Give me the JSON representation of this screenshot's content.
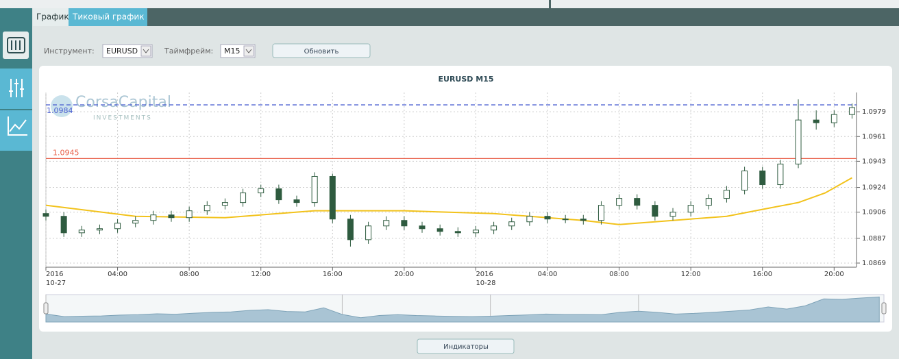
{
  "tabs": [
    "График",
    "Тиковый график"
  ],
  "toolbar": {
    "instrument_label": "Инструмент:",
    "instrument": "EURUSD",
    "timeframe_label": "Таймфрейм:",
    "timeframe": "M15",
    "refresh_button": "Обновить"
  },
  "logo": {
    "name": "CorsaCapital",
    "tagline": "INVESTMENTS"
  },
  "indicators_button": "Индикаторы",
  "chart_data": {
    "type": "candlestick",
    "title": "EURUSD M15",
    "x": [
      "2016-10-27T00:00",
      "2016-10-27T01:00",
      "2016-10-27T02:00",
      "2016-10-27T03:00",
      "2016-10-27T04:00",
      "2016-10-27T05:00",
      "2016-10-27T06:00",
      "2016-10-27T07:00",
      "2016-10-27T08:00",
      "2016-10-27T09:00",
      "2016-10-27T10:00",
      "2016-10-27T11:00",
      "2016-10-27T12:00",
      "2016-10-27T13:00",
      "2016-10-27T14:00",
      "2016-10-27T15:00",
      "2016-10-27T16:00",
      "2016-10-27T17:00",
      "2016-10-27T18:00",
      "2016-10-27T19:00",
      "2016-10-27T20:00",
      "2016-10-27T21:00",
      "2016-10-27T22:00",
      "2016-10-27T23:00",
      "2016-10-28T00:00",
      "2016-10-28T01:00",
      "2016-10-28T02:00",
      "2016-10-28T03:00",
      "2016-10-28T04:00",
      "2016-10-28T05:00",
      "2016-10-28T06:00",
      "2016-10-28T07:00",
      "2016-10-28T08:00",
      "2016-10-28T09:00",
      "2016-10-28T10:00",
      "2016-10-28T11:00",
      "2016-10-28T12:00",
      "2016-10-28T13:00",
      "2016-10-28T14:00",
      "2016-10-28T15:00",
      "2016-10-28T16:00",
      "2016-10-28T17:00",
      "2016-10-28T18:00",
      "2016-10-28T19:00",
      "2016-10-28T20:00",
      "2016-10-28T21:00"
    ],
    "open": [
      1.0905,
      1.0903,
      1.0891,
      1.0893,
      1.0894,
      1.0898,
      1.09,
      1.0904,
      1.0902,
      1.0907,
      1.0911,
      1.0913,
      1.092,
      1.0923,
      1.0915,
      1.0913,
      1.0932,
      1.0901,
      1.0886,
      1.0896,
      1.09,
      1.0896,
      1.0894,
      1.0892,
      1.0891,
      1.0893,
      1.0896,
      1.0899,
      1.0903,
      1.0901,
      1.0901,
      1.09,
      1.0911,
      1.0916,
      1.0911,
      1.0903,
      1.0906,
      1.0911,
      1.0916,
      1.0922,
      1.0936,
      1.0926,
      1.0941,
      1.0973,
      1.0971,
      1.0977
    ],
    "high": [
      1.0908,
      1.0906,
      1.0896,
      1.0897,
      1.0901,
      1.0903,
      1.0907,
      1.0907,
      1.091,
      1.0914,
      1.0916,
      1.0923,
      1.0926,
      1.0926,
      1.0918,
      1.0935,
      1.0934,
      1.0904,
      1.0899,
      1.0903,
      1.0903,
      1.0899,
      1.0897,
      1.0895,
      1.0896,
      1.0899,
      1.0902,
      1.0906,
      1.0906,
      1.0904,
      1.0904,
      1.0914,
      1.0919,
      1.0919,
      1.0914,
      1.0909,
      1.0914,
      1.0919,
      1.0925,
      1.0939,
      1.0939,
      1.0944,
      1.0988,
      1.098,
      1.098,
      1.0985
    ],
    "low": [
      1.09,
      1.0888,
      1.0888,
      1.089,
      1.0891,
      1.0895,
      1.0897,
      1.0899,
      1.0899,
      1.0904,
      1.0908,
      1.091,
      1.0917,
      1.0912,
      1.091,
      1.091,
      1.0898,
      1.0881,
      1.0883,
      1.0893,
      1.0893,
      1.0891,
      1.0889,
      1.0888,
      1.0888,
      1.089,
      1.0893,
      1.0896,
      1.0898,
      1.0898,
      1.0897,
      1.0897,
      1.0908,
      1.0908,
      1.09,
      1.09,
      1.0903,
      1.0908,
      1.0913,
      1.0919,
      1.0923,
      1.0923,
      1.0938,
      1.0966,
      1.0968,
      1.0974
    ],
    "close": [
      1.0903,
      1.0891,
      1.0893,
      1.0894,
      1.0898,
      1.09,
      1.0904,
      1.0902,
      1.0907,
      1.0911,
      1.0913,
      1.092,
      1.0923,
      1.0915,
      1.0913,
      1.0932,
      1.0901,
      1.0886,
      1.0896,
      1.09,
      1.0896,
      1.0894,
      1.0892,
      1.0891,
      1.0893,
      1.0896,
      1.0899,
      1.0903,
      1.0901,
      1.0901,
      1.09,
      1.0911,
      1.0916,
      1.0911,
      1.0903,
      1.0906,
      1.0911,
      1.0916,
      1.0922,
      1.0936,
      1.0926,
      1.0941,
      1.0973,
      1.0971,
      1.0977,
      1.0982
    ],
    "color_up": "#ffffff",
    "color_down": "#2e5b3f",
    "moving_average": {
      "color": "#f2c21b",
      "x": [
        "2016-10-27T00:00",
        "2016-10-27T05:00",
        "2016-10-27T10:00",
        "2016-10-27T15:00",
        "2016-10-27T20:00",
        "2016-10-28T01:00",
        "2016-10-28T06:00",
        "2016-10-28T08:00",
        "2016-10-28T11:00",
        "2016-10-28T14:00",
        "2016-10-28T16:00",
        "2016-10-28T18:00",
        "2016-10-28T19:30",
        "2016-10-28T21:00"
      ],
      "values": [
        1.0911,
        1.0903,
        1.0902,
        1.0907,
        1.0907,
        1.0905,
        1.09,
        1.0897,
        1.09,
        1.0903,
        1.0908,
        1.0913,
        1.092,
        1.0931
      ]
    },
    "levels": [
      {
        "value": 1.0984,
        "color": "#4a5fd0",
        "style": "dashed"
      },
      {
        "value": 1.0945,
        "color": "#e8614a",
        "style": "solid"
      }
    ],
    "xlim": [
      "2016-10-27T00:00",
      "2016-10-28T21:15"
    ],
    "ylim": [
      1.0866,
      1.0993
    ],
    "xticks": [
      {
        "value": "2016-10-27T00:00",
        "label": [
          "2016",
          "10-27"
        ]
      },
      {
        "value": "2016-10-27T04:00",
        "label": "04:00"
      },
      {
        "value": "2016-10-27T08:00",
        "label": "08:00"
      },
      {
        "value": "2016-10-27T12:00",
        "label": "12:00"
      },
      {
        "value": "2016-10-27T16:00",
        "label": "16:00"
      },
      {
        "value": "2016-10-27T20:00",
        "label": "20:00"
      },
      {
        "value": "2016-10-28T00:00",
        "label": [
          "2016",
          "10-28"
        ]
      },
      {
        "value": "2016-10-28T04:00",
        "label": "04:00"
      },
      {
        "value": "2016-10-28T08:00",
        "label": "08:00"
      },
      {
        "value": "2016-10-28T12:00",
        "label": "12:00"
      },
      {
        "value": "2016-10-28T16:00",
        "label": "16:00"
      },
      {
        "value": "2016-10-28T20:00",
        "label": "20:00"
      }
    ],
    "yticks": [
      1.0869,
      1.0887,
      1.0906,
      1.0924,
      1.0943,
      1.0961,
      1.0979
    ],
    "grid": true
  }
}
